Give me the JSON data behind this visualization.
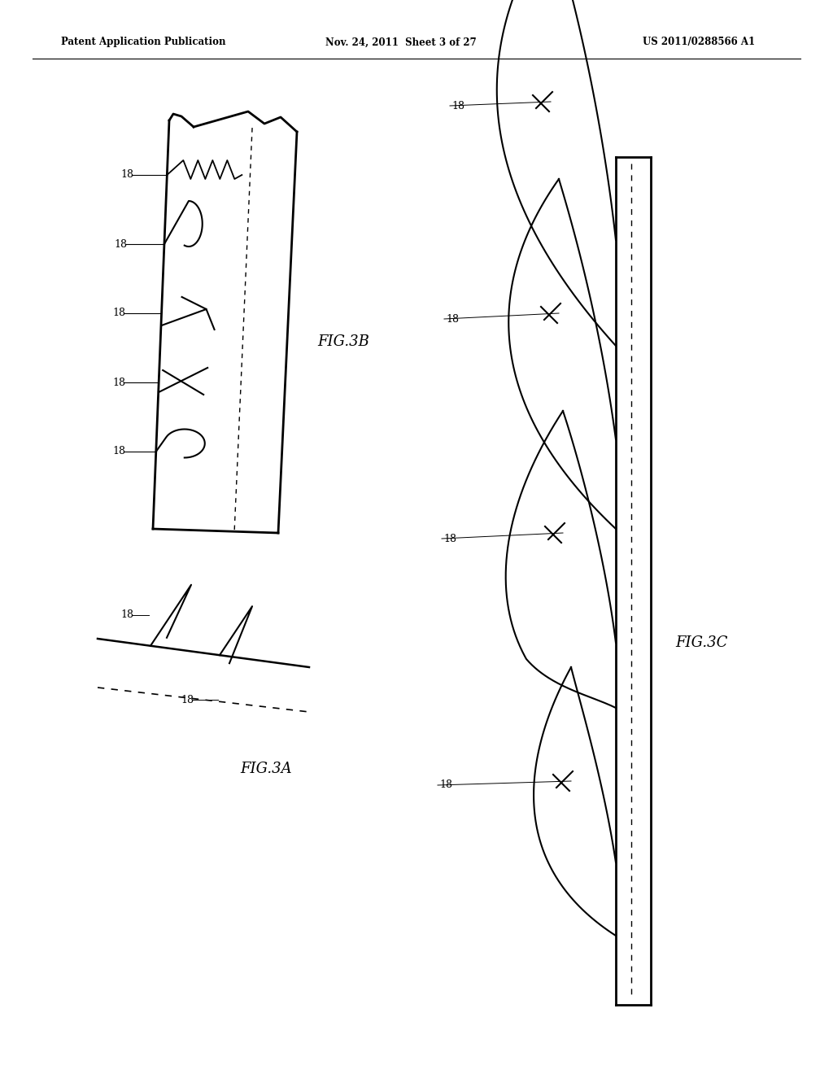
{
  "bg_color": "#ffffff",
  "header_left": "Patent Application Publication",
  "header_mid": "Nov. 24, 2011  Sheet 3 of 27",
  "header_right": "US 2011/0288566 A1",
  "fig3a_label": "FIG.3A",
  "fig3b_label": "FIG.3B",
  "fig3c_label": "FIG.3C",
  "label_18": "18"
}
